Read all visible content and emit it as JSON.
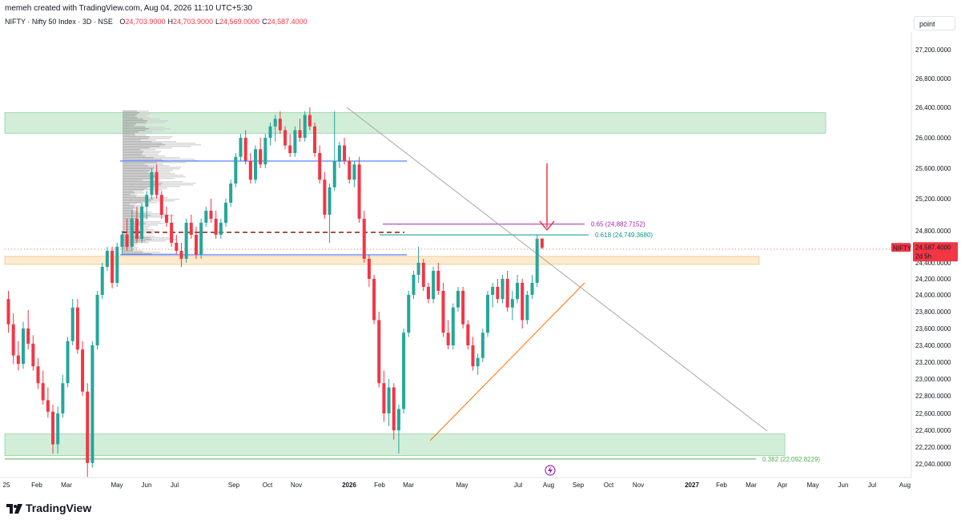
{
  "header": {
    "created_by": "memeh created with TradingView.com, Aug 04, 2026 11:10 UTC+5:30",
    "symbol_title": "NIFTY · Nifty 50 Index · 3D · NSE",
    "ohlc": [
      {
        "label": "O",
        "value": "24,703.9000"
      },
      {
        "label": "H",
        "value": "24,703.9000"
      },
      {
        "label": "L",
        "value": "24,569.0000"
      },
      {
        "label": "C",
        "value": "24,587.4000"
      }
    ]
  },
  "toolbar": {
    "mode_label": "point"
  },
  "footer": {
    "brand": "TradingView"
  },
  "colors": {
    "up": "#26a69a",
    "down": "#f23645",
    "zone_green": "#d2eed8",
    "zone_orange": "#fdebd0",
    "fib_purple": "#9c27b0",
    "fib_teal": "#089981",
    "fib_green": "#4caf50",
    "trendline": "#a6a6a6",
    "support_line": "#ff6d00",
    "hline_blue": "#2962ff",
    "dashed": "#8b1a1a"
  },
  "chart_data": {
    "type": "candlestick",
    "symbol": "NIFTY",
    "interval": "3D",
    "ylim": [
      21850,
      27500
    ],
    "y_ticks": [
      "27,200.0000",
      "26,800.0000",
      "26,400.0000",
      "26,000.0000",
      "25,600.0000",
      "25,200.0000",
      "24,800.0000",
      "24,400.0000",
      "24,200.0000",
      "24,000.0000",
      "23,800.0000",
      "23,600.0000",
      "23,400.0000",
      "23,200.0000",
      "23,000.0000",
      "22,800.0000",
      "22,600.0000",
      "22,400.0000",
      "22,220.0000",
      "22,040.0000"
    ],
    "x_ticks": [
      "25",
      "Feb",
      "Mar",
      "May",
      "Jun",
      "Jul",
      "Sep",
      "Oct",
      "Nov",
      "2026",
      "Feb",
      "Mar",
      "May",
      "Jul",
      "Aug",
      "Sep",
      "Oct",
      "Nov",
      "2027",
      "Feb",
      "Mar",
      "Apr",
      "May",
      "Jun",
      "Jul",
      "Aug"
    ],
    "last_price": {
      "label": "NIFTY",
      "value": "24,587.4000",
      "countdown": "2d 5h"
    },
    "fib_levels": [
      {
        "ratio": "0.65",
        "text": "0.65 (24,882.7152)",
        "price": 24882.7152
      },
      {
        "ratio": "0.618",
        "text": "0.618 (24,749.3680)",
        "price": 24749.368
      },
      {
        "ratio": "0.382",
        "text": "0.382 (22,092.8229)",
        "price": 22092.8229
      }
    ],
    "zones": [
      {
        "name": "resistance-zone",
        "low": 26060,
        "high": 26330
      },
      {
        "name": "support-zone-mid",
        "low": 24380,
        "high": 24480
      },
      {
        "name": "support-zone-low",
        "low": 22130,
        "high": 22360
      }
    ],
    "candles": [
      {
        "o": 23950,
        "h": 24050,
        "l": 23550,
        "c": 23650
      },
      {
        "o": 23650,
        "h": 23780,
        "l": 23180,
        "c": 23280
      },
      {
        "o": 23280,
        "h": 23450,
        "l": 23100,
        "c": 23180
      },
      {
        "o": 23180,
        "h": 23680,
        "l": 23120,
        "c": 23600
      },
      {
        "o": 23600,
        "h": 23820,
        "l": 23350,
        "c": 23420
      },
      {
        "o": 23420,
        "h": 23520,
        "l": 23100,
        "c": 23150
      },
      {
        "o": 23150,
        "h": 23250,
        "l": 22880,
        "c": 22950
      },
      {
        "o": 22950,
        "h": 23100,
        "l": 22700,
        "c": 22750
      },
      {
        "o": 22750,
        "h": 22900,
        "l": 22550,
        "c": 22620
      },
      {
        "o": 22620,
        "h": 22700,
        "l": 22150,
        "c": 22250
      },
      {
        "o": 22250,
        "h": 22680,
        "l": 22150,
        "c": 22600
      },
      {
        "o": 22600,
        "h": 23050,
        "l": 22550,
        "c": 22950
      },
      {
        "o": 22950,
        "h": 23500,
        "l": 22900,
        "c": 23450
      },
      {
        "o": 23450,
        "h": 23950,
        "l": 23400,
        "c": 23850
      },
      {
        "o": 23850,
        "h": 23950,
        "l": 23300,
        "c": 23350
      },
      {
        "o": 23350,
        "h": 23450,
        "l": 22800,
        "c": 22850
      },
      {
        "o": 22850,
        "h": 22950,
        "l": 21900,
        "c": 22050
      },
      {
        "o": 22050,
        "h": 23450,
        "l": 22000,
        "c": 23400
      },
      {
        "o": 23400,
        "h": 24050,
        "l": 23350,
        "c": 24000
      },
      {
        "o": 24000,
        "h": 24400,
        "l": 23950,
        "c": 24350
      },
      {
        "o": 24350,
        "h": 24600,
        "l": 24300,
        "c": 24550
      },
      {
        "o": 24550,
        "h": 24600,
        "l": 24080,
        "c": 24150
      },
      {
        "o": 24150,
        "h": 24650,
        "l": 24100,
        "c": 24600
      },
      {
        "o": 24600,
        "h": 24800,
        "l": 24500,
        "c": 24750
      },
      {
        "o": 24750,
        "h": 24950,
        "l": 24550,
        "c": 24600
      },
      {
        "o": 24600,
        "h": 25050,
        "l": 24550,
        "c": 24950
      },
      {
        "o": 24950,
        "h": 25100,
        "l": 24650,
        "c": 24700
      },
      {
        "o": 24700,
        "h": 25150,
        "l": 24650,
        "c": 25100
      },
      {
        "o": 25100,
        "h": 25300,
        "l": 24950,
        "c": 25250
      },
      {
        "o": 25250,
        "h": 25600,
        "l": 25200,
        "c": 25550
      },
      {
        "o": 25550,
        "h": 25650,
        "l": 25200,
        "c": 25250
      },
      {
        "o": 25250,
        "h": 25300,
        "l": 24950,
        "c": 25000
      },
      {
        "o": 25000,
        "h": 25100,
        "l": 24850,
        "c": 24900
      },
      {
        "o": 24900,
        "h": 25000,
        "l": 24600,
        "c": 24650
      },
      {
        "o": 24650,
        "h": 24750,
        "l": 24500,
        "c": 24550
      },
      {
        "o": 24550,
        "h": 24650,
        "l": 24350,
        "c": 24450
      },
      {
        "o": 24450,
        "h": 24950,
        "l": 24400,
        "c": 24900
      },
      {
        "o": 24900,
        "h": 25000,
        "l": 24700,
        "c": 24750
      },
      {
        "o": 24750,
        "h": 24850,
        "l": 24450,
        "c": 24500
      },
      {
        "o": 24500,
        "h": 24950,
        "l": 24450,
        "c": 24900
      },
      {
        "o": 24900,
        "h": 25100,
        "l": 24850,
        "c": 25050
      },
      {
        "o": 25050,
        "h": 25200,
        "l": 24900,
        "c": 24950
      },
      {
        "o": 24950,
        "h": 25050,
        "l": 24700,
        "c": 24750
      },
      {
        "o": 24750,
        "h": 24950,
        "l": 24700,
        "c": 24900
      },
      {
        "o": 24900,
        "h": 25200,
        "l": 24850,
        "c": 25150
      },
      {
        "o": 25150,
        "h": 25450,
        "l": 25100,
        "c": 25400
      },
      {
        "o": 25400,
        "h": 25800,
        "l": 25350,
        "c": 25750
      },
      {
        "o": 25750,
        "h": 26050,
        "l": 25700,
        "c": 26000
      },
      {
        "o": 26000,
        "h": 26100,
        "l": 25650,
        "c": 25700
      },
      {
        "o": 25700,
        "h": 25800,
        "l": 25400,
        "c": 25450
      },
      {
        "o": 25450,
        "h": 25900,
        "l": 25400,
        "c": 25850
      },
      {
        "o": 25850,
        "h": 26000,
        "l": 25600,
        "c": 25650
      },
      {
        "o": 25650,
        "h": 26050,
        "l": 25600,
        "c": 26000
      },
      {
        "o": 26000,
        "h": 26200,
        "l": 25900,
        "c": 26150
      },
      {
        "o": 26150,
        "h": 26300,
        "l": 25950,
        "c": 26250
      },
      {
        "o": 26250,
        "h": 26350,
        "l": 26050,
        "c": 26100
      },
      {
        "o": 26100,
        "h": 26150,
        "l": 25850,
        "c": 25900
      },
      {
        "o": 25900,
        "h": 26050,
        "l": 25750,
        "c": 25800
      },
      {
        "o": 25800,
        "h": 26150,
        "l": 25750,
        "c": 26100
      },
      {
        "o": 26100,
        "h": 26250,
        "l": 25950,
        "c": 26000
      },
      {
        "o": 26000,
        "h": 26350,
        "l": 25950,
        "c": 26300
      },
      {
        "o": 26300,
        "h": 26400,
        "l": 26100,
        "c": 26150
      },
      {
        "o": 26150,
        "h": 26200,
        "l": 25750,
        "c": 25800
      },
      {
        "o": 25800,
        "h": 25900,
        "l": 25400,
        "c": 25450
      },
      {
        "o": 25450,
        "h": 25550,
        "l": 24950,
        "c": 25000
      },
      {
        "o": 25000,
        "h": 25400,
        "l": 24650,
        "c": 25350
      },
      {
        "o": 25350,
        "h": 26350,
        "l": 25300,
        "c": 25700
      },
      {
        "o": 25700,
        "h": 25950,
        "l": 25600,
        "c": 25900
      },
      {
        "o": 25900,
        "h": 26000,
        "l": 25650,
        "c": 25700
      },
      {
        "o": 25700,
        "h": 25750,
        "l": 25400,
        "c": 25450
      },
      {
        "o": 25450,
        "h": 25700,
        "l": 25350,
        "c": 25650
      },
      {
        "o": 25650,
        "h": 25750,
        "l": 24900,
        "c": 24950
      },
      {
        "o": 24950,
        "h": 25050,
        "l": 24400,
        "c": 24450
      },
      {
        "o": 24450,
        "h": 24500,
        "l": 24100,
        "c": 24200
      },
      {
        "o": 24200,
        "h": 24250,
        "l": 23650,
        "c": 23700
      },
      {
        "o": 23700,
        "h": 23800,
        "l": 22900,
        "c": 22950
      },
      {
        "o": 22950,
        "h": 23100,
        "l": 22500,
        "c": 22600
      },
      {
        "o": 22600,
        "h": 23000,
        "l": 22450,
        "c": 22900
      },
      {
        "o": 22900,
        "h": 22950,
        "l": 22300,
        "c": 22400
      },
      {
        "o": 22400,
        "h": 22700,
        "l": 22150,
        "c": 22650
      },
      {
        "o": 22650,
        "h": 23600,
        "l": 22600,
        "c": 23550
      },
      {
        "o": 23550,
        "h": 24050,
        "l": 23500,
        "c": 24000
      },
      {
        "o": 24000,
        "h": 24300,
        "l": 23950,
        "c": 24250
      },
      {
        "o": 24250,
        "h": 24600,
        "l": 24150,
        "c": 24400
      },
      {
        "o": 24400,
        "h": 24450,
        "l": 24050,
        "c": 24100
      },
      {
        "o": 24100,
        "h": 24150,
        "l": 23900,
        "c": 23950
      },
      {
        "o": 23950,
        "h": 24350,
        "l": 23900,
        "c": 24300
      },
      {
        "o": 24300,
        "h": 24400,
        "l": 24000,
        "c": 24050
      },
      {
        "o": 24050,
        "h": 24150,
        "l": 23500,
        "c": 23550
      },
      {
        "o": 23550,
        "h": 23700,
        "l": 23350,
        "c": 23400
      },
      {
        "o": 23400,
        "h": 23900,
        "l": 23350,
        "c": 23850
      },
      {
        "o": 23850,
        "h": 24100,
        "l": 23800,
        "c": 24050
      },
      {
        "o": 24050,
        "h": 24100,
        "l": 23600,
        "c": 23650
      },
      {
        "o": 23650,
        "h": 23700,
        "l": 23350,
        "c": 23400
      },
      {
        "o": 23400,
        "h": 23500,
        "l": 23100,
        "c": 23150
      },
      {
        "o": 23150,
        "h": 23300,
        "l": 23050,
        "c": 23250
      },
      {
        "o": 23250,
        "h": 23600,
        "l": 23200,
        "c": 23550
      },
      {
        "o": 23550,
        "h": 24050,
        "l": 23500,
        "c": 24000
      },
      {
        "o": 24000,
        "h": 24150,
        "l": 23850,
        "c": 24100
      },
      {
        "o": 24100,
        "h": 24200,
        "l": 23900,
        "c": 23950
      },
      {
        "o": 23950,
        "h": 24250,
        "l": 23900,
        "c": 24200
      },
      {
        "o": 24200,
        "h": 24300,
        "l": 23800,
        "c": 23850
      },
      {
        "o": 23850,
        "h": 24050,
        "l": 23700,
        "c": 23950
      },
      {
        "o": 23950,
        "h": 24250,
        "l": 23900,
        "c": 24150
      },
      {
        "o": 24150,
        "h": 24200,
        "l": 23600,
        "c": 23700
      },
      {
        "o": 23700,
        "h": 24050,
        "l": 23650,
        "c": 24000
      },
      {
        "o": 24000,
        "h": 24250,
        "l": 23950,
        "c": 24150
      },
      {
        "o": 24150,
        "h": 24750,
        "l": 24100,
        "c": 24700
      },
      {
        "o": 24703.9,
        "h": 24703.9,
        "l": 24569,
        "c": 24587.4
      }
    ]
  }
}
